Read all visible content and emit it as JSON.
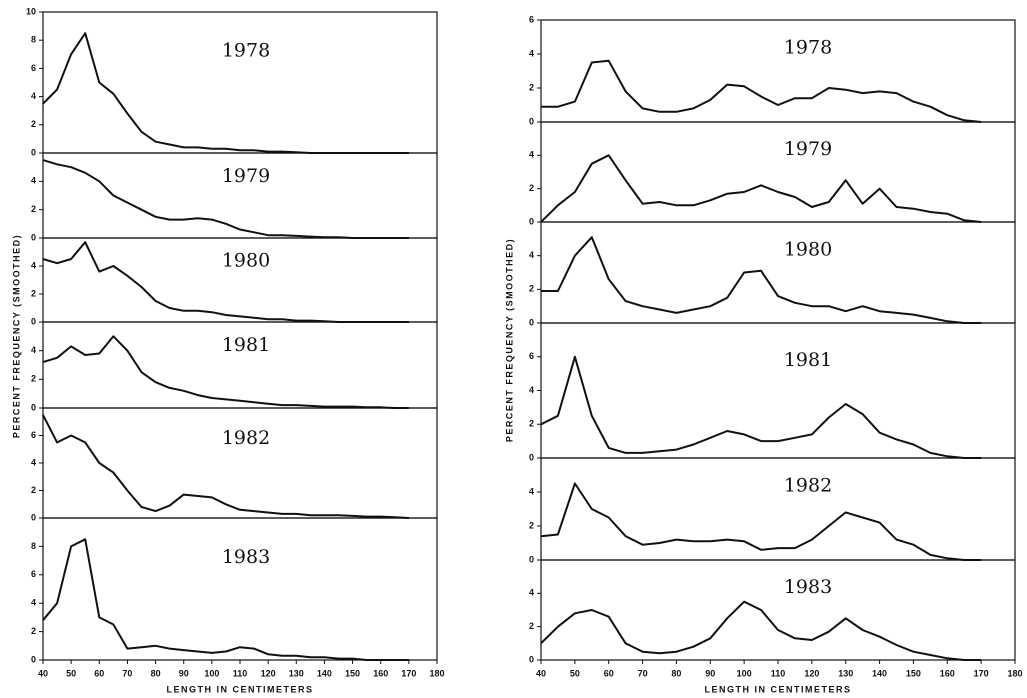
{
  "chart_data": [
    {
      "type": "line",
      "xlabel": "LENGTH IN CENTIMETERS",
      "ylabel": "PERCENT FREQUENCY (SMOOTHED)",
      "xlim": [
        40,
        180
      ],
      "xticks": [
        40,
        50,
        60,
        70,
        80,
        90,
        100,
        110,
        120,
        130,
        140,
        150,
        160,
        170,
        180
      ],
      "x": [
        40,
        45,
        50,
        55,
        60,
        65,
        70,
        75,
        80,
        85,
        90,
        95,
        100,
        105,
        110,
        115,
        120,
        125,
        130,
        135,
        140,
        145,
        150,
        155,
        160,
        165,
        170
      ],
      "color": "#111111",
      "subplots": [
        {
          "label": "1978",
          "ylim": [
            0,
            10
          ],
          "yticks": [
            0,
            2,
            4,
            6,
            8,
            10
          ],
          "values": [
            3.5,
            4.5,
            7,
            8.5,
            5,
            4.2,
            2.8,
            1.5,
            0.8,
            0.6,
            0.4,
            0.4,
            0.3,
            0.3,
            0.2,
            0.2,
            0.1,
            0.1,
            0.05,
            0,
            0,
            0,
            0,
            0,
            0,
            0,
            0
          ]
        },
        {
          "label": "1979",
          "ylim": [
            0,
            6
          ],
          "yticks": [
            0,
            2,
            4
          ],
          "values": [
            5.5,
            5.2,
            5,
            4.6,
            4,
            3,
            2.5,
            2,
            1.5,
            1.3,
            1.3,
            1.4,
            1.3,
            1,
            0.6,
            0.4,
            0.2,
            0.2,
            0.15,
            0.1,
            0.05,
            0.05,
            0,
            0,
            0,
            0,
            0
          ]
        },
        {
          "label": "1980",
          "ylim": [
            0,
            6
          ],
          "yticks": [
            0,
            2,
            4
          ],
          "values": [
            4.5,
            4.2,
            4.5,
            5.7,
            3.6,
            4,
            3.3,
            2.5,
            1.5,
            1,
            0.8,
            0.8,
            0.7,
            0.5,
            0.4,
            0.3,
            0.2,
            0.2,
            0.1,
            0.1,
            0.05,
            0,
            0,
            0,
            0,
            0,
            0
          ]
        },
        {
          "label": "1981",
          "ylim": [
            0,
            6
          ],
          "yticks": [
            0,
            2,
            4
          ],
          "values": [
            3.2,
            3.5,
            4.3,
            3.7,
            3.8,
            5,
            4,
            2.5,
            1.8,
            1.4,
            1.2,
            0.9,
            0.7,
            0.6,
            0.5,
            0.4,
            0.3,
            0.2,
            0.2,
            0.15,
            0.1,
            0.1,
            0.1,
            0.05,
            0.05,
            0,
            0
          ]
        },
        {
          "label": "1982",
          "ylim": [
            0,
            8
          ],
          "yticks": [
            0,
            2,
            4,
            6
          ],
          "values": [
            7.5,
            5.5,
            6,
            5.5,
            4,
            3.3,
            2,
            0.8,
            0.5,
            0.9,
            1.7,
            1.6,
            1.5,
            1,
            0.6,
            0.5,
            0.4,
            0.3,
            0.3,
            0.2,
            0.2,
            0.2,
            0.15,
            0.1,
            0.1,
            0.05,
            0
          ]
        },
        {
          "label": "1983",
          "ylim": [
            0,
            10
          ],
          "yticks": [
            0,
            2,
            4,
            6,
            8
          ],
          "values": [
            2.8,
            4,
            8,
            8.5,
            3,
            2.5,
            0.8,
            0.9,
            1,
            0.8,
            0.7,
            0.6,
            0.5,
            0.6,
            0.9,
            0.8,
            0.4,
            0.3,
            0.3,
            0.2,
            0.2,
            0.1,
            0.1,
            0,
            0,
            0,
            0
          ]
        }
      ]
    },
    {
      "type": "line",
      "xlabel": "LENGTH IN CENTIMETERS",
      "ylabel": "PERCENT FREQUENCY (SMOOTHED)",
      "xlim": [
        40,
        180
      ],
      "xticks": [
        40,
        50,
        60,
        70,
        80,
        90,
        100,
        110,
        120,
        130,
        140,
        150,
        160,
        170,
        180
      ],
      "x": [
        40,
        45,
        50,
        55,
        60,
        65,
        70,
        75,
        80,
        85,
        90,
        95,
        100,
        105,
        110,
        115,
        120,
        125,
        130,
        135,
        140,
        145,
        150,
        155,
        160,
        165,
        170
      ],
      "color": "#111111",
      "subplots": [
        {
          "label": "1978",
          "ylim": [
            0,
            6
          ],
          "yticks": [
            0,
            2,
            4,
            6
          ],
          "values": [
            0.9,
            0.9,
            1.2,
            3.5,
            3.6,
            1.8,
            0.8,
            0.6,
            0.6,
            0.8,
            1.3,
            2.2,
            2.1,
            1.5,
            1,
            1.4,
            1.4,
            2,
            1.9,
            1.7,
            1.8,
            1.7,
            1.2,
            0.9,
            0.4,
            0.1,
            0
          ]
        },
        {
          "label": "1979",
          "ylim": [
            0,
            6
          ],
          "yticks": [
            0,
            2,
            4
          ],
          "values": [
            0,
            1,
            1.8,
            3.5,
            4,
            2.5,
            1.1,
            1.2,
            1,
            1,
            1.3,
            1.7,
            1.8,
            2.2,
            1.8,
            1.5,
            0.9,
            1.2,
            2.5,
            1.1,
            2,
            0.9,
            0.8,
            0.6,
            0.5,
            0.1,
            0
          ]
        },
        {
          "label": "1980",
          "ylim": [
            0,
            6
          ],
          "yticks": [
            0,
            2,
            4
          ],
          "values": [
            1.9,
            1.9,
            4,
            5.1,
            2.6,
            1.3,
            1,
            0.8,
            0.6,
            0.8,
            1,
            1.5,
            3,
            3.1,
            1.6,
            1.2,
            1,
            1,
            0.7,
            1,
            0.7,
            0.6,
            0.5,
            0.3,
            0.1,
            0,
            0
          ]
        },
        {
          "label": "1981",
          "ylim": [
            0,
            8
          ],
          "yticks": [
            0,
            2,
            4,
            6
          ],
          "values": [
            2,
            2.5,
            6,
            2.5,
            0.6,
            0.3,
            0.3,
            0.4,
            0.5,
            0.8,
            1.2,
            1.6,
            1.4,
            1,
            1,
            1.2,
            1.4,
            2.4,
            3.2,
            2.6,
            1.5,
            1.1,
            0.8,
            0.3,
            0.1,
            0,
            0
          ]
        },
        {
          "label": "1982",
          "ylim": [
            0,
            6
          ],
          "yticks": [
            0,
            2,
            4
          ],
          "values": [
            1.4,
            1.5,
            4.5,
            3,
            2.5,
            1.4,
            0.9,
            1,
            1.2,
            1.1,
            1.1,
            1.2,
            1.1,
            0.6,
            0.7,
            0.7,
            1.2,
            2,
            2.8,
            2.5,
            2.2,
            1.2,
            0.9,
            0.3,
            0.1,
            0,
            0
          ]
        },
        {
          "label": "1983",
          "ylim": [
            0,
            6
          ],
          "yticks": [
            0,
            2,
            4
          ],
          "values": [
            1,
            2,
            2.8,
            3,
            2.6,
            1,
            0.5,
            0.4,
            0.5,
            0.8,
            1.3,
            2.5,
            3.5,
            3,
            1.8,
            1.3,
            1.2,
            1.7,
            2.5,
            1.8,
            1.4,
            0.9,
            0.5,
            0.3,
            0.1,
            0,
            0
          ]
        }
      ]
    }
  ]
}
